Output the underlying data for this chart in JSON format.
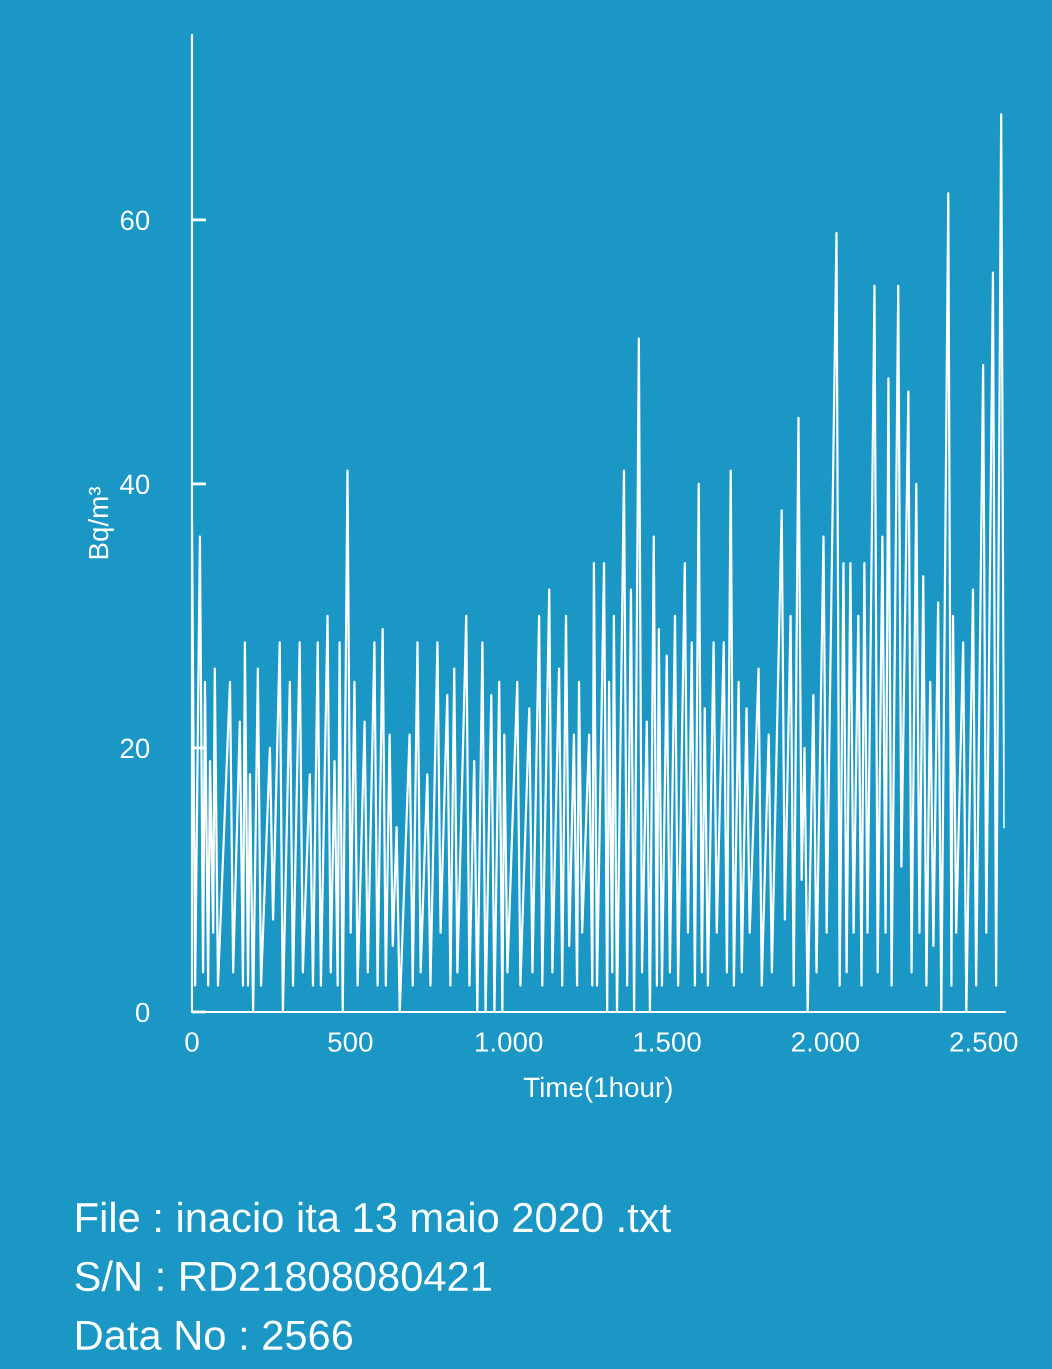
{
  "chart_data": {
    "type": "line",
    "xlabel": "Time(1hour)",
    "ylabel": "Bq/m³",
    "xlim": [
      0,
      2566
    ],
    "ylim": [
      0,
      74
    ],
    "xticks": [
      0,
      500,
      {
        "value": 1000,
        "label": "1.000"
      },
      {
        "value": 1500,
        "label": "1.500"
      },
      {
        "value": 2000,
        "label": "2.000"
      },
      {
        "value": 2500,
        "label": "2.500"
      }
    ],
    "yticks": [
      0,
      20,
      40,
      60
    ],
    "grid": false,
    "marker": "none",
    "line_style": "solid",
    "series": [
      {
        "color": "#ffffff",
        "x": [
          0,
          10,
          25,
          35,
          41,
          51,
          57,
          67,
          72,
          82,
          120,
          130,
          151,
          161,
          167,
          177,
          183,
          193,
          208,
          218,
          246,
          256,
          277,
          287,
          309,
          319,
          340,
          350,
          372,
          382,
          397,
          407,
          428,
          438,
          450,
          460,
          466,
          476,
          491,
          501,
          513,
          523,
          545,
          555,
          576,
          586,
          602,
          612,
          624,
          634,
          646,
          656,
          687,
          697,
          712,
          722,
          743,
          753,
          775,
          785,
          806,
          816,
          828,
          838,
          866,
          876,
          891,
          901,
          917,
          927,
          945,
          955,
          970,
          980,
          986,
          996,
          1027,
          1037,
          1065,
          1075,
          1096,
          1106,
          1128,
          1138,
          1159,
          1169,
          1181,
          1191,
          1206,
          1216,
          1222,
          1232,
          1254,
          1264,
          1269,
          1279,
          1301,
          1311,
          1317,
          1327,
          1332,
          1342,
          1364,
          1374,
          1386,
          1396,
          1411,
          1421,
          1436,
          1446,
          1458,
          1468,
          1474,
          1484,
          1499,
          1509,
          1525,
          1535,
          1556,
          1566,
          1578,
          1588,
          1600,
          1610,
          1619,
          1629,
          1647,
          1657,
          1679,
          1689,
          1701,
          1711,
          1726,
          1736,
          1751,
          1761,
          1789,
          1799,
          1821,
          1831,
          1862,
          1872,
          1890,
          1900,
          1915,
          1925,
          1934,
          1944,
          1962,
          1972,
          1994,
          2004,
          2035,
          2045,
          2057,
          2067,
          2079,
          2089,
          2104,
          2114,
          2123,
          2133,
          2155,
          2165,
          2180,
          2190,
          2199,
          2209,
          2230,
          2240,
          2262,
          2272,
          2287,
          2297,
          2309,
          2319,
          2331,
          2341,
          2356,
          2366,
          2388,
          2398,
          2403,
          2413,
          2435,
          2445,
          2466,
          2476,
          2498,
          2508,
          2529,
          2539,
          2555,
          2561,
          2565
        ],
        "values": [
          37,
          2,
          36,
          3,
          25,
          2,
          19,
          6,
          26,
          2,
          25,
          3,
          22,
          2,
          28,
          2,
          18,
          0,
          26,
          2,
          20,
          7,
          28,
          0,
          25,
          2,
          28,
          3,
          18,
          2,
          28,
          2,
          30,
          3,
          19,
          2,
          28,
          0,
          41,
          6,
          25,
          2,
          22,
          3,
          28,
          2,
          29,
          2,
          21,
          5,
          14,
          0,
          21,
          2,
          28,
          3,
          18,
          2,
          28,
          6,
          24,
          2,
          26,
          3,
          30,
          2,
          19,
          0,
          28,
          0,
          24,
          0,
          25,
          0,
          21,
          3,
          25,
          2,
          23,
          3,
          30,
          2,
          32,
          3,
          26,
          2,
          30,
          5,
          21,
          2,
          25,
          6,
          21,
          2,
          34,
          2,
          34,
          0,
          25,
          3,
          30,
          0,
          41,
          2,
          32,
          0,
          51,
          3,
          22,
          0,
          36,
          2,
          29,
          2,
          27,
          3,
          30,
          2,
          34,
          6,
          28,
          2,
          40,
          3,
          23,
          2,
          28,
          6,
          28,
          3,
          41,
          2,
          25,
          3,
          23,
          6,
          26,
          2,
          21,
          3,
          38,
          7,
          30,
          2,
          45,
          10,
          20,
          0,
          24,
          3,
          36,
          6,
          59,
          2,
          34,
          3,
          34,
          6,
          30,
          2,
          34,
          6,
          55,
          3,
          36,
          6,
          48,
          2,
          55,
          11,
          47,
          3,
          40,
          6,
          33,
          2,
          25,
          5,
          31,
          0,
          62,
          2,
          30,
          6,
          28,
          0,
          32,
          2,
          49,
          6,
          56,
          2,
          68,
          33,
          14
        ]
      }
    ],
    "annotations": [
      "File : inacio ita 13 maio 2020 .txt",
      "S/N : RD21808080421",
      "Data No : 2566"
    ]
  }
}
